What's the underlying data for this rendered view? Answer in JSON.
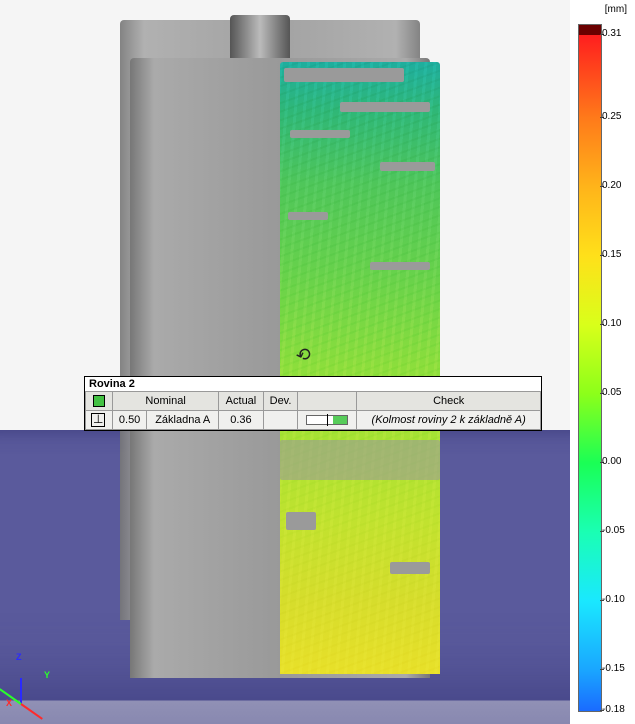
{
  "legend": {
    "unit": "[mm]",
    "top_over": "#6b0000",
    "stops": [
      {
        "v": "0.31",
        "c": "#ff1e1e"
      },
      {
        "v": "0.25",
        "c": "#ff7a1a"
      },
      {
        "v": "0.20",
        "c": "#ffb41a"
      },
      {
        "v": "0.15",
        "c": "#ffe01a"
      },
      {
        "v": "0.10",
        "c": "#d9ff1a"
      },
      {
        "v": "0.05",
        "c": "#8cff1a"
      },
      {
        "v": "0.00",
        "c": "#1aff55"
      },
      {
        "v": "-0.05",
        "c": "#1affb3"
      },
      {
        "v": "-0.10",
        "c": "#1ae8ff"
      },
      {
        "v": "-0.15",
        "c": "#1aa6ff"
      },
      {
        "v": "-0.18",
        "c": "#1a6bff"
      }
    ]
  },
  "callout": {
    "title": "Rovina 2",
    "headers": [
      "",
      "Nominal",
      "Actual",
      "Dev.",
      "",
      "Check"
    ],
    "row": {
      "nominal": "0.50",
      "datum": "Základna A",
      "actual": "0.36",
      "dev": "",
      "check": "(Kolmost roviny 2 k základně A)"
    }
  },
  "triad": {
    "x": {
      "color": "#ff2a2a",
      "label": "X"
    },
    "y": {
      "color": "#2aff2a",
      "label": "Y"
    },
    "z": {
      "color": "#2a2aff",
      "label": "Z"
    }
  }
}
